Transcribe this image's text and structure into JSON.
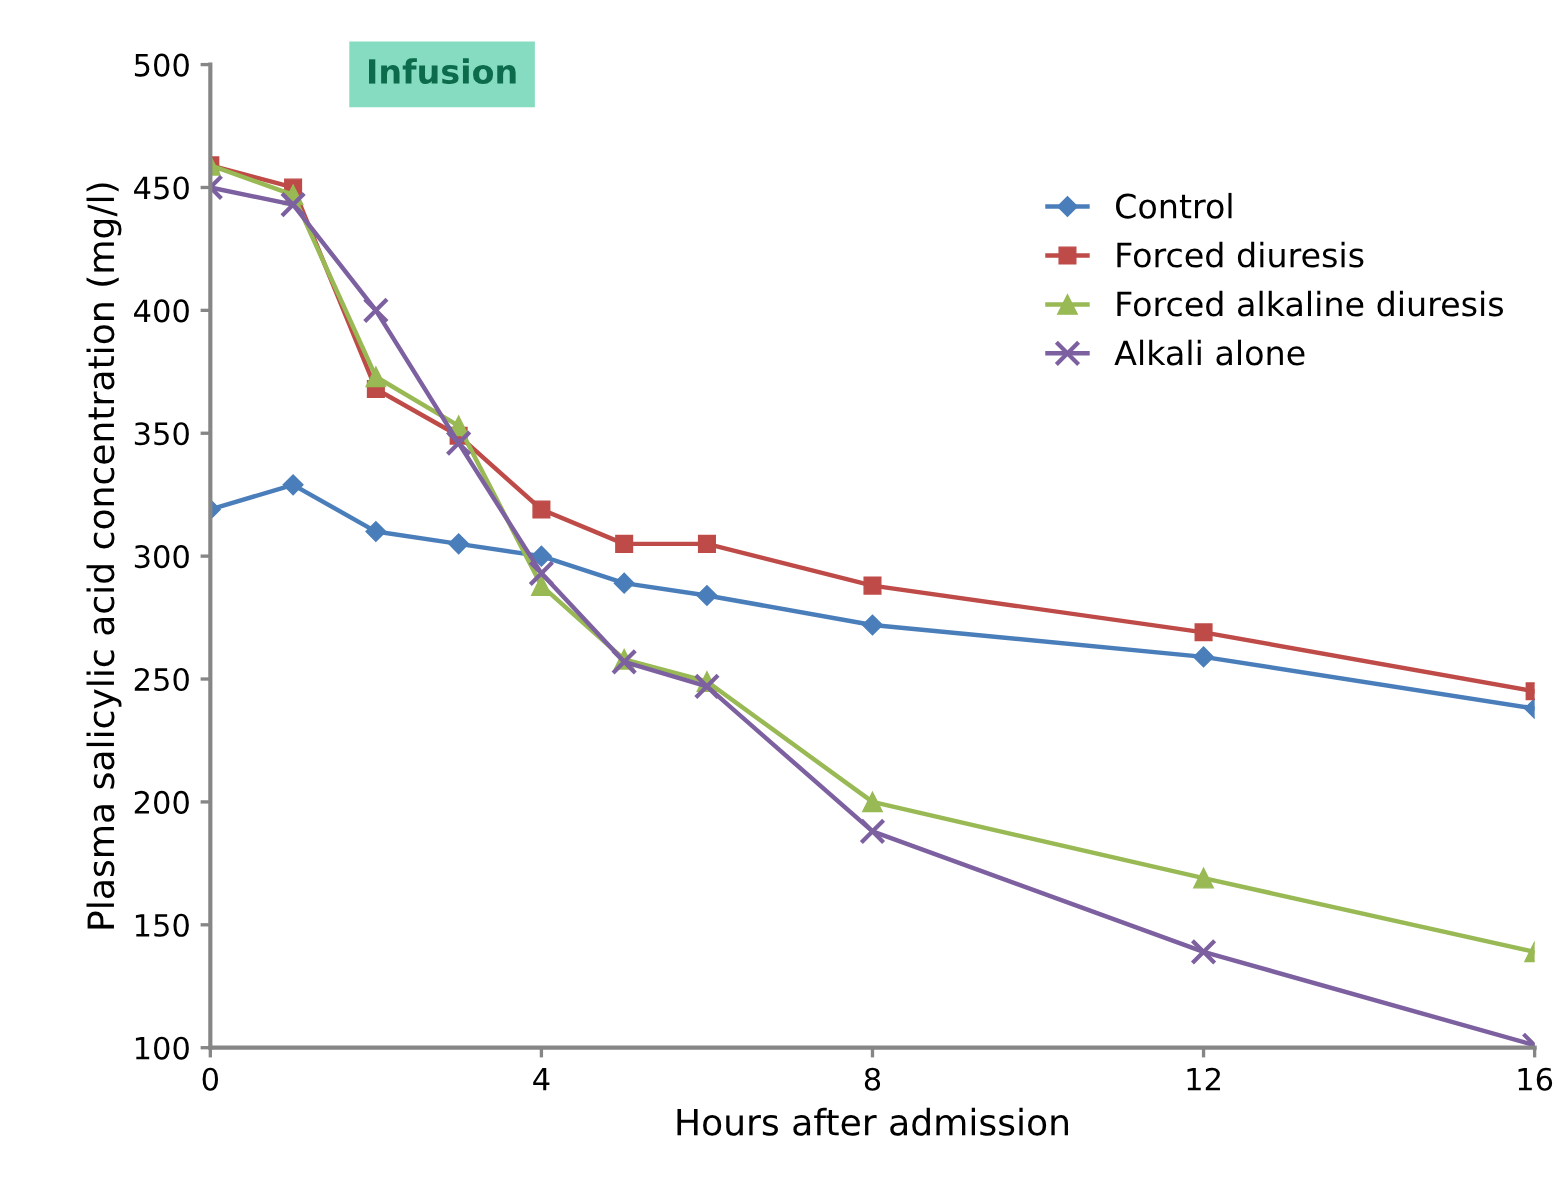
{
  "chart_data": {
    "type": "line",
    "xlabel": "Hours after admission",
    "ylabel": "Plasma salicylic acid concentration (mg/l)",
    "x": [
      0,
      1,
      2,
      3,
      4,
      5,
      6,
      8,
      12,
      16
    ],
    "series": [
      {
        "name": "Control",
        "color": "#4a7ebb",
        "marker": "diamond",
        "values": [
          319,
          329,
          310,
          305,
          300,
          289,
          284,
          272,
          259,
          238
        ]
      },
      {
        "name": "Forced diuresis",
        "color": "#be4b48",
        "marker": "square",
        "values": [
          459,
          450,
          368,
          349,
          319,
          305,
          305,
          288,
          269,
          245
        ]
      },
      {
        "name": "Forced alkaline diuresis",
        "color": "#98b954",
        "marker": "triangle",
        "values": [
          459,
          447,
          373,
          353,
          288,
          258,
          249,
          200,
          169,
          139
        ]
      },
      {
        "name": "Alkali alone",
        "color": "#7d60a0",
        "marker": "cross",
        "values": [
          450,
          443,
          400,
          346,
          293,
          257,
          247,
          188,
          139,
          101
        ]
      }
    ],
    "annotations": [
      "Infusion"
    ],
    "xlim": [
      0,
      16
    ],
    "xticks": [
      0,
      4,
      8,
      12,
      16
    ],
    "ylim": [
      100,
      500
    ],
    "yticks": [
      100,
      150,
      200,
      250,
      300,
      350,
      400,
      450,
      500
    ],
    "grid": false,
    "legend": "top right"
  }
}
